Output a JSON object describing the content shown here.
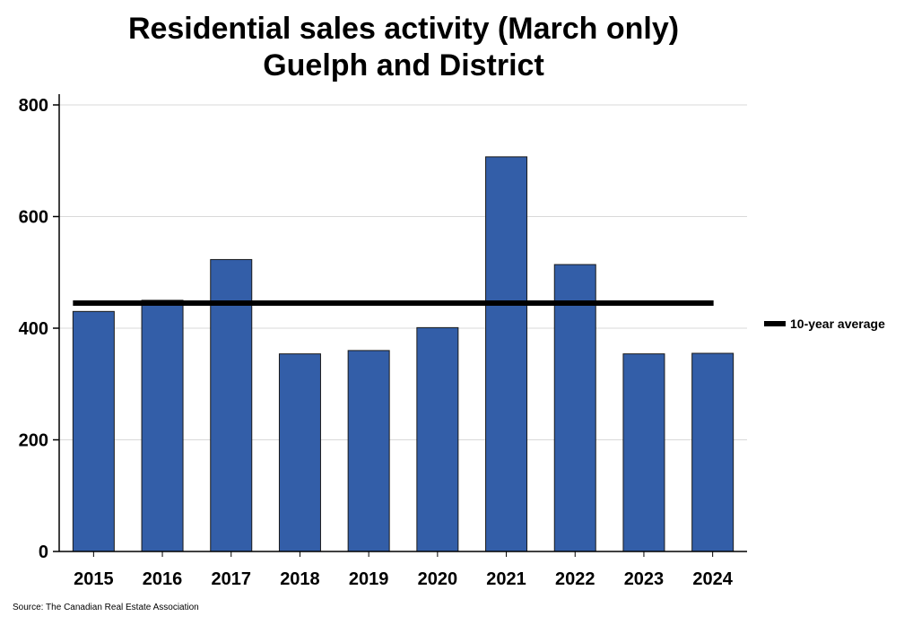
{
  "chart_data": {
    "type": "bar",
    "title": "Residential sales activity (March only)",
    "subtitle": "Guelph and District",
    "categories": [
      "2015",
      "2016",
      "2017",
      "2018",
      "2019",
      "2020",
      "2021",
      "2022",
      "2023",
      "2024"
    ],
    "series": [
      {
        "name": "Residential sales",
        "values": [
          430,
          450,
          523,
          354,
          360,
          401,
          707,
          514,
          354,
          355
        ]
      }
    ],
    "reference_line": {
      "name": "10-year average",
      "value": 445
    },
    "ylim": [
      0,
      800
    ],
    "yticks": [
      0,
      200,
      400,
      600,
      800
    ],
    "grid": true,
    "legend": {
      "position": "right",
      "entries": [
        "10-year average"
      ]
    },
    "xlabel": "",
    "ylabel": "",
    "colors": {
      "bar": "#335ea8",
      "bar_border": "#1a1a1a",
      "average_line": "#000000",
      "grid": "#d9d9d9"
    }
  },
  "source": "Source: The Canadian Real Estate Association"
}
